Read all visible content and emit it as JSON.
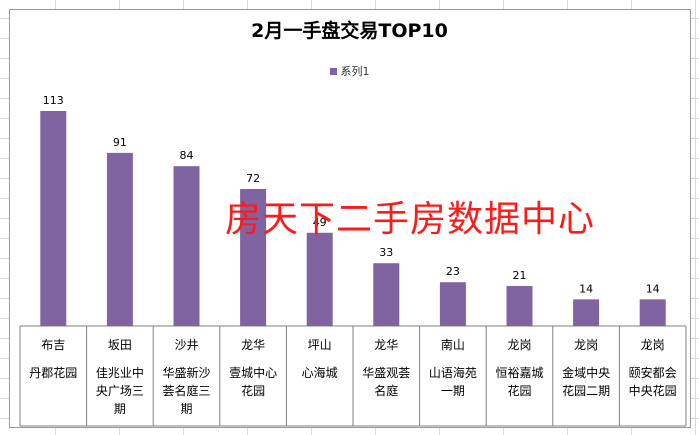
{
  "chart_data": {
    "type": "bar",
    "title": "2月一手盘交易TOP10",
    "legend": [
      "系列1"
    ],
    "legend_position": "top",
    "ylim": [
      0,
      113
    ],
    "categories": [
      {
        "district": "布吉",
        "name": "丹郡花园"
      },
      {
        "district": "坂田",
        "name": "佳兆业中央广场三期"
      },
      {
        "district": "沙井",
        "name": "华盛新沙荟名庭三期"
      },
      {
        "district": "龙华",
        "name": "壹城中心花园"
      },
      {
        "district": "坪山",
        "name": "心海城"
      },
      {
        "district": "龙华",
        "name": "华盛观荟名庭"
      },
      {
        "district": "南山",
        "name": "山语海苑一期"
      },
      {
        "district": "龙岗",
        "name": "恒裕嘉城花园"
      },
      {
        "district": "龙岗",
        "name": "金域中央花园二期"
      },
      {
        "district": "龙岗",
        "name": "颐安都会中央花园"
      }
    ],
    "series": [
      {
        "name": "系列1",
        "values": [
          113,
          91,
          84,
          72,
          49,
          33,
          23,
          21,
          14,
          14
        ]
      }
    ],
    "data_labels": true,
    "grid": false
  },
  "watermark": "房天下二手房数据中心",
  "colors": {
    "bar": "#8064a2",
    "watermark": "#ff1a1a",
    "axis": "#7f7f7f"
  },
  "cell_lines": {
    "佳兆业中央广场三期": [
      "佳兆业中",
      "央广场三",
      "期"
    ],
    "华盛新沙荟名庭三期": [
      "华盛新沙",
      "荟名庭三",
      "期"
    ],
    "壹城中心花园": [
      "壹城中心",
      "花园"
    ],
    "华盛观荟名庭": [
      "华盛观荟",
      "名庭"
    ],
    "山语海苑一期": [
      "山语海苑",
      "一期"
    ],
    "恒裕嘉城花园": [
      "恒裕嘉城",
      "花园"
    ],
    "金域中央花园二期": [
      "金域中央",
      "花园二期"
    ],
    "颐安都会中央花园": [
      "颐安都会",
      "中央花园"
    ]
  }
}
